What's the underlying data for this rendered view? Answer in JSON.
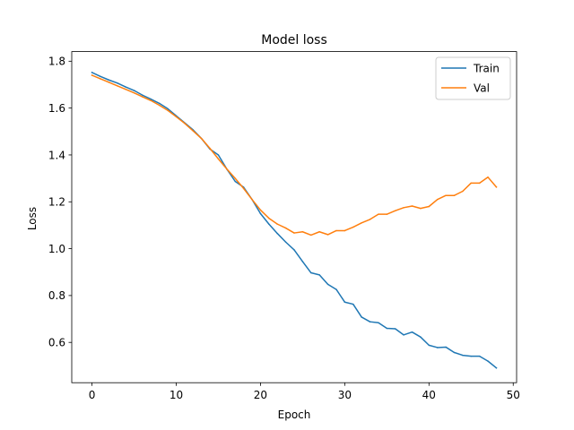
{
  "chart_data": {
    "type": "line",
    "title": "Model loss",
    "xlabel": "Epoch",
    "ylabel": "Loss",
    "xlim": [
      -2.4,
      50.4
    ],
    "ylim": [
      0.428,
      1.841
    ],
    "xticks": [
      0,
      10,
      20,
      30,
      40,
      50
    ],
    "yticks": [
      0.6,
      0.8,
      1.0,
      1.2,
      1.4,
      1.6,
      1.8
    ],
    "xtick_labels": [
      "0",
      "10",
      "20",
      "30",
      "40",
      "50"
    ],
    "ytick_labels": [
      "0.6",
      "0.8",
      "1.0",
      "1.2",
      "1.4",
      "1.6",
      "1.8"
    ],
    "grid": false,
    "legend_position": "top-right",
    "x": [
      0,
      1,
      2,
      3,
      4,
      5,
      6,
      7,
      8,
      9,
      10,
      11,
      12,
      13,
      14,
      15,
      16,
      17,
      18,
      19,
      20,
      21,
      22,
      23,
      24,
      25,
      26,
      27,
      28,
      29,
      30,
      31,
      32,
      33,
      34,
      35,
      36,
      37,
      38,
      39,
      40,
      41,
      42,
      43,
      44,
      45,
      46,
      47,
      48
    ],
    "series": [
      {
        "name": "Train",
        "color": "#1f77b4",
        "values": [
          1.752,
          1.735,
          1.72,
          1.707,
          1.69,
          1.675,
          1.655,
          1.638,
          1.62,
          1.597,
          1.567,
          1.537,
          1.507,
          1.47,
          1.425,
          1.4,
          1.34,
          1.287,
          1.262,
          1.21,
          1.15,
          1.105,
          1.065,
          1.028,
          0.995,
          0.945,
          0.897,
          0.888,
          0.848,
          0.826,
          0.772,
          0.763,
          0.708,
          0.688,
          0.684,
          0.66,
          0.658,
          0.632,
          0.644,
          0.623,
          0.588,
          0.578,
          0.58,
          0.557,
          0.545,
          0.541,
          0.541,
          0.52,
          0.491
        ]
      },
      {
        "name": "Val",
        "color": "#ff7f0e",
        "values": [
          1.74,
          1.725,
          1.71,
          1.695,
          1.68,
          1.665,
          1.648,
          1.632,
          1.612,
          1.59,
          1.563,
          1.535,
          1.503,
          1.47,
          1.428,
          1.383,
          1.34,
          1.3,
          1.257,
          1.21,
          1.165,
          1.13,
          1.105,
          1.088,
          1.067,
          1.072,
          1.058,
          1.072,
          1.06,
          1.077,
          1.077,
          1.092,
          1.11,
          1.125,
          1.147,
          1.147,
          1.162,
          1.175,
          1.182,
          1.172,
          1.18,
          1.21,
          1.227,
          1.227,
          1.245,
          1.28,
          1.28,
          1.305,
          1.263
        ]
      }
    ]
  }
}
